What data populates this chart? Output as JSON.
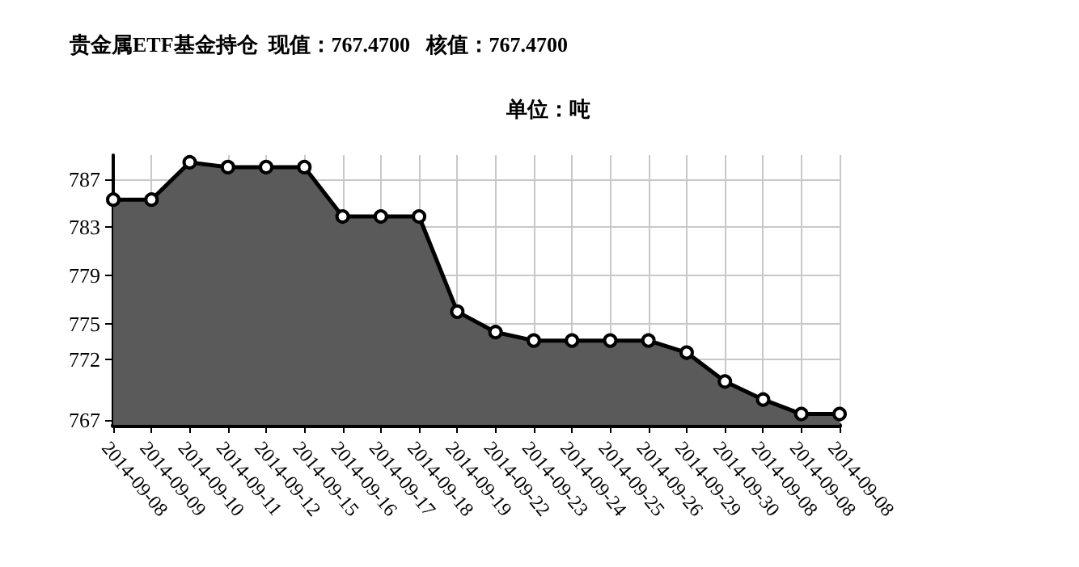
{
  "chart_data": {
    "type": "area",
    "title": "贵金属ETF基金持仓  现值：767.4700   核值：767.4700",
    "subtitle": "单位：吨",
    "categories": [
      "2014-09-08",
      "2014-09-09",
      "2014-09-10",
      "2014-09-11",
      "2014-09-12",
      "2014-09-15",
      "2014-09-16",
      "2014-09-17",
      "2014-09-18",
      "2014-09-19",
      "2014-09-22",
      "2014-09-23",
      "2014-09-24",
      "2014-09-25",
      "2014-09-26",
      "2014-09-29",
      "2014-09-30",
      "2014-09-08",
      "2014-09-08",
      "2014-09-08"
    ],
    "series": [
      {
        "color": "#5a5a5a",
        "values": [
          785.3,
          785.3,
          788.4,
          788.0,
          788.0,
          788.0,
          783.9,
          783.9,
          783.9,
          776.0,
          774.3,
          773.6,
          773.6,
          773.6,
          773.6,
          772.6,
          770.2,
          768.7,
          767.5,
          767.5
        ]
      }
    ],
    "ylim": [
      766.6,
      789
    ],
    "yticks": [
      767,
      772,
      775,
      779,
      783,
      787
    ],
    "grid": true,
    "marker": "circle",
    "line_style": "solid"
  }
}
